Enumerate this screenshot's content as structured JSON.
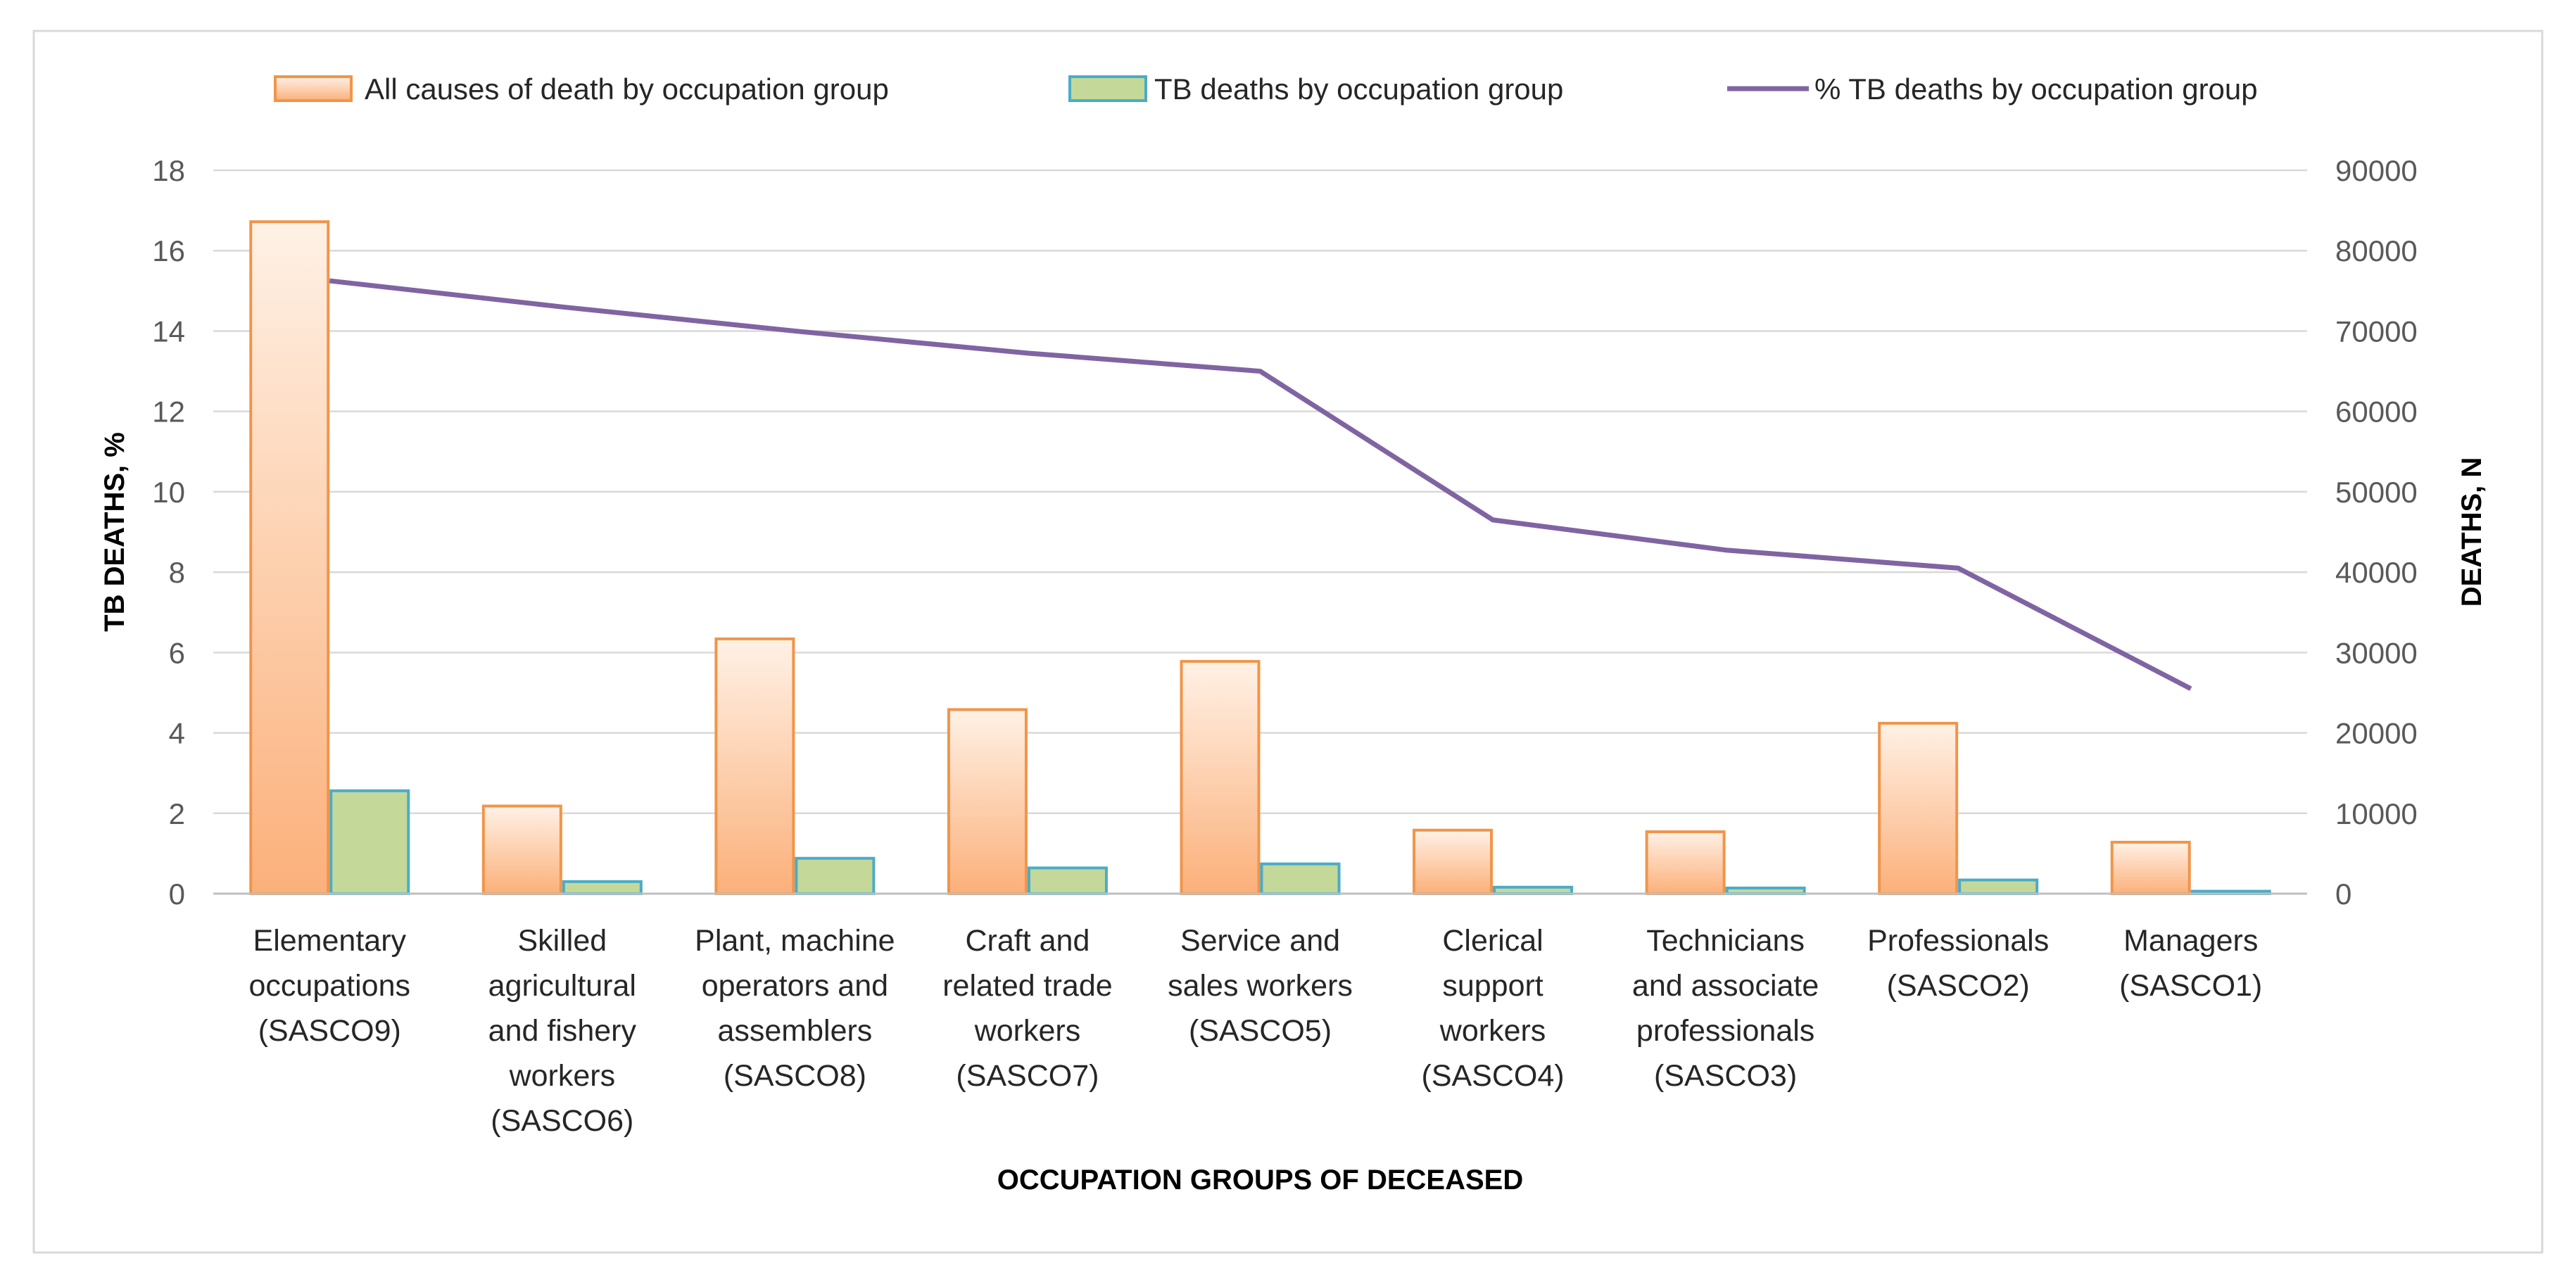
{
  "chart_data": {
    "type": "bar",
    "categories": [
      [
        "Elementary",
        "occupations",
        "(SASCO9)"
      ],
      [
        "Skilled",
        "agricultural",
        "and fishery",
        "workers",
        "(SASCO6)"
      ],
      [
        "Plant, machine",
        "operators and",
        "assemblers",
        "(SASCO8)"
      ],
      [
        "Craft and",
        "related trade",
        "workers",
        "(SASCO7)"
      ],
      [
        "Service and",
        "sales workers",
        "(SASCO5)"
      ],
      [
        "Clerical",
        "support",
        "workers",
        "(SASCO4)"
      ],
      [
        "Technicians",
        "and associate",
        "professionals",
        "(SASCO3)"
      ],
      [
        "Professionals",
        "(SASCO2)"
      ],
      [
        "Managers",
        "(SASCO1)"
      ]
    ],
    "series": [
      {
        "name": "All causes of death by occupation group",
        "kind": "bar",
        "axis": "right",
        "color": "#F0954A",
        "fill_top": "#FFF1E6",
        "fill_bottom": "#FBB07A",
        "values": [
          83600,
          10900,
          31700,
          22900,
          28900,
          7900,
          7700,
          21200,
          6400
        ]
      },
      {
        "name": "TB deaths by occupation group",
        "kind": "bar",
        "axis": "right",
        "color": "#4BACC6",
        "fill": "#C4D89A",
        "values": [
          12800,
          1500,
          4400,
          3200,
          3700,
          800,
          700,
          1700,
          300
        ]
      },
      {
        "name": "% TB deaths by occupation group",
        "kind": "line",
        "axis": "left",
        "color": "#8064A2",
        "values": [
          15.25,
          14.6,
          14.0,
          13.45,
          13.0,
          9.3,
          8.55,
          8.1,
          5.1
        ]
      }
    ],
    "xlabel": "OCCUPATION GROUPS OF DECEASED",
    "ylabel_left": "TB DEATHS, %",
    "ylabel_right": "DEATHS, N",
    "ylim_left": [
      0,
      18
    ],
    "ylim_right": [
      0,
      90000
    ],
    "yticks_left": [
      "0",
      "2",
      "4",
      "6",
      "8",
      "10",
      "12",
      "14",
      "16",
      "18"
    ],
    "yticks_right": [
      "0",
      "10000",
      "20000",
      "30000",
      "40000",
      "50000",
      "60000",
      "70000",
      "80000",
      "90000"
    ],
    "grid": true,
    "legend_position": "top"
  }
}
